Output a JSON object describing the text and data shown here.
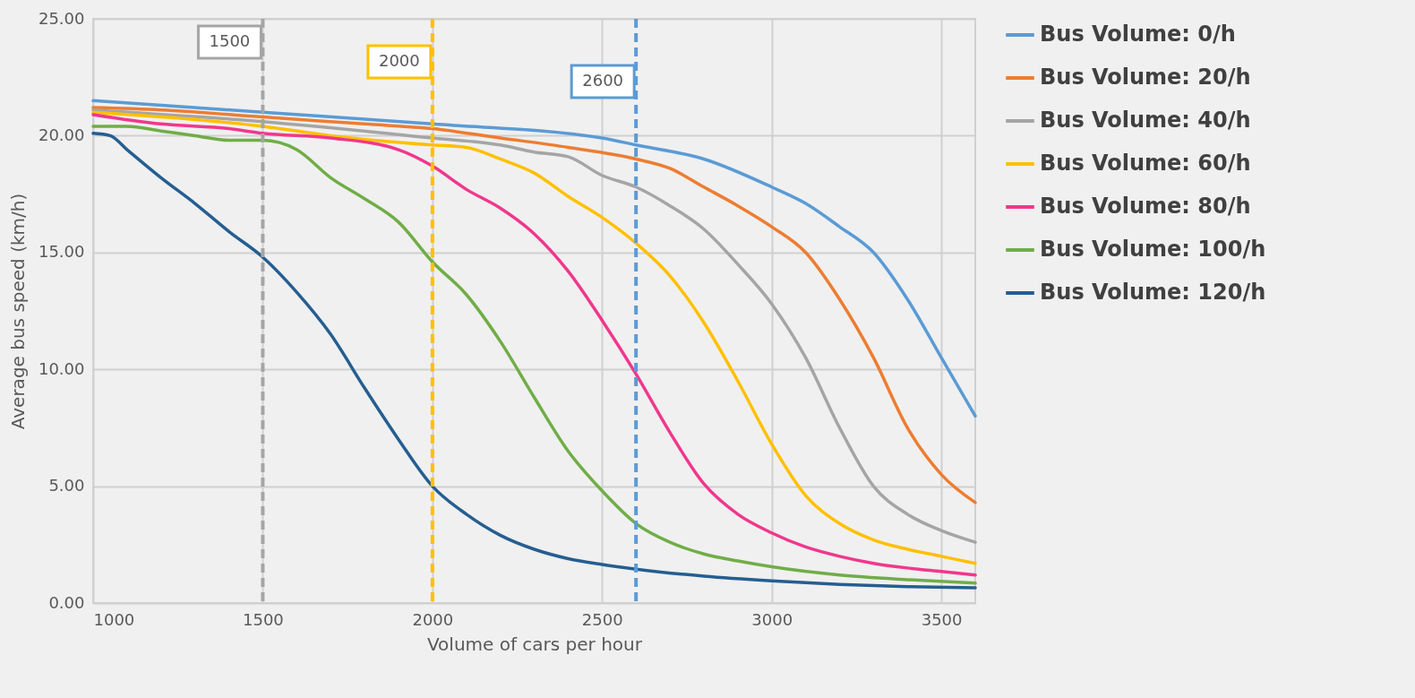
{
  "chart_data": {
    "type": "line",
    "xlabel": "Volume of cars per hour",
    "ylabel": "Average bus speed (km/h)",
    "xlim": [
      1000,
      3600
    ],
    "xticks": [
      1000,
      1500,
      2000,
      2500,
      3000,
      3500
    ],
    "ylim": [
      0,
      25
    ],
    "yticks": [
      {
        "value": 0,
        "label": "0.00"
      },
      {
        "value": 5,
        "label": "5.00"
      },
      {
        "value": 10,
        "label": "10.00"
      },
      {
        "value": 15,
        "label": "15.00"
      },
      {
        "value": 20,
        "label": "20.00"
      },
      {
        "value": 25,
        "label": "25.00"
      }
    ],
    "grid": true,
    "legend": "right",
    "marker": "none",
    "series": [
      {
        "name": "Bus Volume: 0/h",
        "color": "#5b9bd5",
        "x": [
          1000,
          1500,
          2000,
          2500,
          2600,
          2800,
          3000,
          3100,
          3200,
          3300,
          3400,
          3500,
          3600
        ],
        "values": [
          21.5,
          21.0,
          20.5,
          19.9,
          19.6,
          19.0,
          17.8,
          17.1,
          16.1,
          15.0,
          13.0,
          10.5,
          8.0
        ]
      },
      {
        "name": "Bus Volume: 20/h",
        "color": "#ed7d31",
        "x": [
          1000,
          1200,
          1500,
          1800,
          2000,
          2200,
          2400,
          2600,
          2700,
          2800,
          2900,
          3000,
          3100,
          3200,
          3300,
          3400,
          3500,
          3600
        ],
        "values": [
          21.2,
          21.1,
          20.8,
          20.5,
          20.3,
          19.9,
          19.5,
          19.0,
          18.6,
          17.8,
          17.0,
          16.1,
          15.0,
          13.0,
          10.5,
          7.5,
          5.5,
          4.3
        ]
      },
      {
        "name": "Bus Volume: 40/h",
        "color": "#a5a5a5",
        "x": [
          1000,
          1500,
          2000,
          2200,
          2300,
          2400,
          2500,
          2600,
          2700,
          2800,
          2900,
          3000,
          3100,
          3200,
          3300,
          3400,
          3500,
          3600
        ],
        "values": [
          21.1,
          20.6,
          19.9,
          19.6,
          19.3,
          19.1,
          18.3,
          17.8,
          17.0,
          16.0,
          14.5,
          12.8,
          10.5,
          7.5,
          5.0,
          3.8,
          3.1,
          2.6
        ]
      },
      {
        "name": "Bus Volume: 60/h",
        "color": "#ffc000",
        "x": [
          1000,
          1500,
          1700,
          2000,
          2100,
          2200,
          2300,
          2400,
          2500,
          2600,
          2700,
          2800,
          2900,
          3000,
          3100,
          3200,
          3300,
          3400,
          3500,
          3600
        ],
        "values": [
          21.0,
          20.4,
          20.0,
          19.6,
          19.5,
          19.0,
          18.4,
          17.4,
          16.5,
          15.4,
          14.0,
          12.0,
          9.5,
          6.8,
          4.6,
          3.4,
          2.7,
          2.3,
          2.0,
          1.7
        ]
      },
      {
        "name": "Bus Volume: 80/h",
        "color": "#f0388c",
        "x": [
          1000,
          1200,
          1400,
          1500,
          1700,
          1900,
          2000,
          2100,
          2200,
          2300,
          2400,
          2500,
          2600,
          2700,
          2800,
          2900,
          3000,
          3100,
          3200,
          3300,
          3400,
          3500,
          3600
        ],
        "values": [
          20.9,
          20.5,
          20.3,
          20.1,
          19.9,
          19.4,
          18.7,
          17.7,
          16.9,
          15.8,
          14.2,
          12.1,
          9.8,
          7.3,
          5.1,
          3.8,
          3.0,
          2.4,
          2.0,
          1.7,
          1.5,
          1.35,
          1.2
        ]
      },
      {
        "name": "Bus Volume: 100/h",
        "color": "#70ad47",
        "x": [
          1000,
          1100,
          1200,
          1300,
          1400,
          1500,
          1600,
          1700,
          1800,
          1900,
          2000,
          2100,
          2200,
          2300,
          2400,
          2500,
          2600,
          2700,
          2800,
          2900,
          3000,
          3200,
          3400,
          3600
        ],
        "values": [
          20.4,
          20.4,
          20.2,
          20.0,
          19.8,
          19.8,
          19.4,
          18.2,
          17.3,
          16.3,
          14.6,
          13.2,
          11.2,
          8.8,
          6.5,
          4.8,
          3.4,
          2.6,
          2.1,
          1.8,
          1.55,
          1.2,
          1.0,
          0.85
        ]
      },
      {
        "name": "Bus Volume: 120/h",
        "color": "#255e91",
        "x": [
          1000,
          1050,
          1100,
          1200,
          1300,
          1400,
          1500,
          1600,
          1700,
          1800,
          1900,
          2000,
          2100,
          2200,
          2300,
          2400,
          2500,
          2600,
          2800,
          3000,
          3200,
          3400,
          3600
        ],
        "values": [
          20.1,
          20.0,
          19.4,
          18.2,
          17.1,
          15.9,
          14.8,
          13.3,
          11.5,
          9.2,
          7.0,
          5.0,
          3.8,
          2.9,
          2.3,
          1.9,
          1.65,
          1.45,
          1.15,
          0.95,
          0.8,
          0.7,
          0.65
        ]
      }
    ],
    "ref_lines": [
      {
        "axis": "x",
        "value": 1500,
        "label": "1500",
        "color": "#a5a5a5",
        "line_style": "dashed"
      },
      {
        "axis": "x",
        "value": 2000,
        "label": "2000",
        "color": "#ffc000",
        "line_style": "dashed"
      },
      {
        "axis": "x",
        "value": 2600,
        "label": "2600",
        "color": "#5b9bd5",
        "line_style": "dashed"
      }
    ]
  }
}
